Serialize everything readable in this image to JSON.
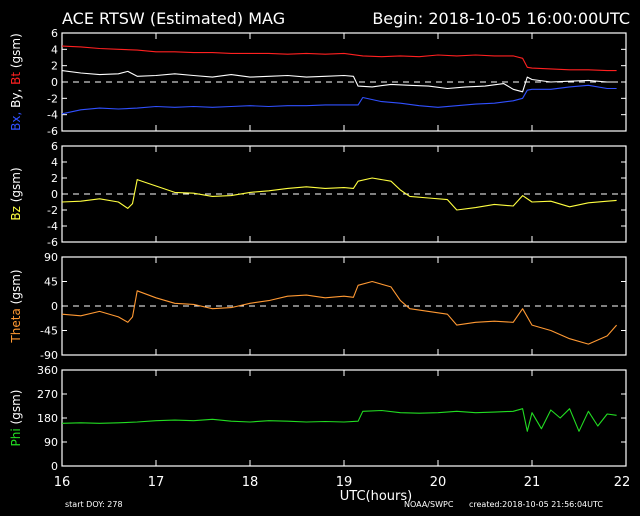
{
  "header": {
    "title": "ACE RTSW (Estimated) MAG",
    "begin": "Begin: 2018-10-05 16:00:00UTC"
  },
  "footer": {
    "start_doy": "start DOY:  278",
    "agency": "NOAA/SWPC",
    "created": "created:2018-10-05 21:56:04UTC"
  },
  "colors": {
    "background": "#000000",
    "axes": "#ffffff",
    "bt": "#ff2020",
    "bx": "#3050ff",
    "by": "#ffffff",
    "bz": "#ffff40",
    "theta": "#ff9933",
    "phi": "#22dd22"
  },
  "chart_data": [
    {
      "type": "line",
      "ylabel_parts": [
        {
          "text": "Bx,",
          "color": "#3050ff"
        },
        {
          "text": "By,",
          "color": "#ffffff"
        },
        {
          "text": "Bt",
          "color": "#ff2020"
        },
        {
          "text": "(gsm)",
          "color": "#ffffff"
        }
      ],
      "ylim": [
        -6,
        6
      ],
      "yticks": [
        6,
        4,
        2,
        0,
        -2,
        -4,
        -6
      ],
      "xlim": [
        16,
        22
      ],
      "zero_line": true,
      "series": [
        {
          "key": "bt",
          "color": "#ff2020",
          "x": [
            16.0,
            16.2,
            16.4,
            16.6,
            16.8,
            17.0,
            17.2,
            17.4,
            17.6,
            17.8,
            18.0,
            18.2,
            18.4,
            18.6,
            18.8,
            19.0,
            19.2,
            19.4,
            19.6,
            19.8,
            20.0,
            20.2,
            20.4,
            20.6,
            20.8,
            20.9,
            20.95,
            21.0,
            21.2,
            21.4,
            21.6,
            21.8,
            21.9
          ],
          "y": [
            4.4,
            4.3,
            4.1,
            4.0,
            3.9,
            3.7,
            3.7,
            3.6,
            3.6,
            3.5,
            3.5,
            3.5,
            3.4,
            3.5,
            3.4,
            3.5,
            3.2,
            3.1,
            3.2,
            3.1,
            3.3,
            3.2,
            3.3,
            3.2,
            3.2,
            2.9,
            1.8,
            1.7,
            1.6,
            1.5,
            1.5,
            1.4,
            1.4
          ]
        },
        {
          "key": "by",
          "color": "#ffffff",
          "x": [
            16.0,
            16.2,
            16.4,
            16.6,
            16.7,
            16.8,
            17.0,
            17.2,
            17.4,
            17.6,
            17.8,
            18.0,
            18.2,
            18.4,
            18.6,
            18.8,
            19.0,
            19.1,
            19.15,
            19.3,
            19.5,
            19.7,
            19.9,
            20.1,
            20.3,
            20.5,
            20.7,
            20.8,
            20.9,
            20.95,
            21.0,
            21.2,
            21.4,
            21.6,
            21.8,
            21.9
          ],
          "y": [
            1.4,
            1.1,
            0.9,
            1.0,
            1.3,
            0.7,
            0.8,
            1.0,
            0.8,
            0.6,
            0.9,
            0.6,
            0.7,
            0.8,
            0.6,
            0.7,
            0.8,
            0.7,
            -0.5,
            -0.6,
            -0.3,
            -0.4,
            -0.5,
            -0.8,
            -0.6,
            -0.5,
            -0.2,
            -0.9,
            -1.2,
            0.6,
            0.3,
            0.0,
            0.1,
            0.2,
            0.0,
            0.0
          ]
        },
        {
          "key": "bx",
          "color": "#3050ff",
          "x": [
            16.0,
            16.2,
            16.4,
            16.6,
            16.8,
            17.0,
            17.2,
            17.4,
            17.6,
            17.8,
            18.0,
            18.2,
            18.4,
            18.6,
            18.8,
            19.0,
            19.15,
            19.2,
            19.4,
            19.6,
            19.8,
            20.0,
            20.2,
            20.4,
            20.6,
            20.8,
            20.9,
            20.95,
            21.0,
            21.2,
            21.4,
            21.6,
            21.8,
            21.9
          ],
          "y": [
            -3.9,
            -3.4,
            -3.2,
            -3.3,
            -3.2,
            -3.0,
            -3.1,
            -3.0,
            -3.1,
            -3.0,
            -2.9,
            -3.0,
            -2.9,
            -2.9,
            -2.8,
            -2.8,
            -2.8,
            -1.9,
            -2.4,
            -2.6,
            -2.9,
            -3.1,
            -2.9,
            -2.7,
            -2.6,
            -2.3,
            -2.0,
            -1.0,
            -0.9,
            -0.9,
            -0.6,
            -0.4,
            -0.8,
            -0.8
          ]
        }
      ]
    },
    {
      "type": "line",
      "ylabel_parts": [
        {
          "text": "Bz",
          "color": "#ffff40"
        },
        {
          "text": "(gsm)",
          "color": "#ffffff"
        }
      ],
      "ylim": [
        -6,
        6
      ],
      "yticks": [
        6,
        4,
        2,
        0,
        -2,
        -4,
        -6
      ],
      "xlim": [
        16,
        22
      ],
      "zero_line": true,
      "series": [
        {
          "key": "bz",
          "color": "#ffff40",
          "x": [
            16.0,
            16.2,
            16.4,
            16.6,
            16.7,
            16.75,
            16.8,
            17.0,
            17.2,
            17.4,
            17.6,
            17.8,
            18.0,
            18.2,
            18.4,
            18.6,
            18.8,
            19.0,
            19.1,
            19.15,
            19.3,
            19.5,
            19.6,
            19.7,
            19.9,
            20.1,
            20.2,
            20.4,
            20.6,
            20.8,
            20.9,
            21.0,
            21.2,
            21.4,
            21.6,
            21.8,
            21.9
          ],
          "y": [
            -1.0,
            -0.9,
            -0.6,
            -1.0,
            -1.8,
            -1.2,
            1.8,
            1.0,
            0.2,
            0.1,
            -0.3,
            -0.2,
            0.2,
            0.4,
            0.7,
            0.9,
            0.7,
            0.8,
            0.7,
            1.6,
            2.0,
            1.6,
            0.5,
            -0.3,
            -0.5,
            -0.7,
            -2.0,
            -1.7,
            -1.3,
            -1.5,
            -0.2,
            -1.0,
            -0.9,
            -1.6,
            -1.1,
            -0.9,
            -0.8
          ]
        }
      ]
    },
    {
      "type": "line",
      "ylabel_parts": [
        {
          "text": "Theta",
          "color": "#ff9933"
        },
        {
          "text": "(gsm)",
          "color": "#ffffff"
        }
      ],
      "ylim": [
        -90,
        90
      ],
      "yticks": [
        90,
        45,
        0,
        -45,
        -90
      ],
      "xlim": [
        16,
        22
      ],
      "zero_line": true,
      "series": [
        {
          "key": "theta",
          "color": "#ff9933",
          "x": [
            16.0,
            16.2,
            16.4,
            16.6,
            16.7,
            16.75,
            16.8,
            17.0,
            17.2,
            17.4,
            17.6,
            17.8,
            18.0,
            18.2,
            18.4,
            18.6,
            18.8,
            19.0,
            19.1,
            19.15,
            19.3,
            19.5,
            19.6,
            19.7,
            19.9,
            20.1,
            20.2,
            20.4,
            20.6,
            20.8,
            20.9,
            21.0,
            21.2,
            21.4,
            21.6,
            21.8,
            21.9
          ],
          "y": [
            -15,
            -18,
            -10,
            -20,
            -30,
            -20,
            28,
            15,
            5,
            3,
            -5,
            -3,
            5,
            10,
            18,
            20,
            15,
            18,
            16,
            38,
            45,
            35,
            10,
            -5,
            -10,
            -15,
            -35,
            -30,
            -28,
            -30,
            -5,
            -35,
            -45,
            -60,
            -70,
            -55,
            -35
          ]
        }
      ]
    },
    {
      "type": "line",
      "ylabel_parts": [
        {
          "text": "Phi",
          "color": "#22dd22"
        },
        {
          "text": "(gsm)",
          "color": "#ffffff"
        }
      ],
      "ylim": [
        0,
        360
      ],
      "yticks": [
        360,
        270,
        180,
        90,
        0
      ],
      "xlim": [
        16,
        22
      ],
      "zero_line": false,
      "series": [
        {
          "key": "phi",
          "color": "#22dd22",
          "x": [
            16.0,
            16.2,
            16.4,
            16.6,
            16.8,
            17.0,
            17.2,
            17.4,
            17.6,
            17.8,
            18.0,
            18.2,
            18.4,
            18.6,
            18.8,
            19.0,
            19.15,
            19.2,
            19.4,
            19.6,
            19.8,
            20.0,
            20.2,
            20.4,
            20.6,
            20.8,
            20.9,
            20.95,
            21.0,
            21.1,
            21.2,
            21.3,
            21.4,
            21.5,
            21.6,
            21.7,
            21.8,
            21.9
          ],
          "y": [
            160,
            162,
            160,
            162,
            165,
            170,
            172,
            170,
            175,
            168,
            165,
            170,
            168,
            165,
            167,
            165,
            168,
            205,
            208,
            200,
            198,
            200,
            205,
            200,
            202,
            205,
            215,
            130,
            200,
            140,
            210,
            180,
            215,
            130,
            205,
            150,
            195,
            190
          ]
        }
      ]
    }
  ],
  "x_axis": {
    "ticks": [
      16,
      17,
      18,
      19,
      20,
      21,
      22
    ],
    "xlabel": "UTC(hours)"
  }
}
